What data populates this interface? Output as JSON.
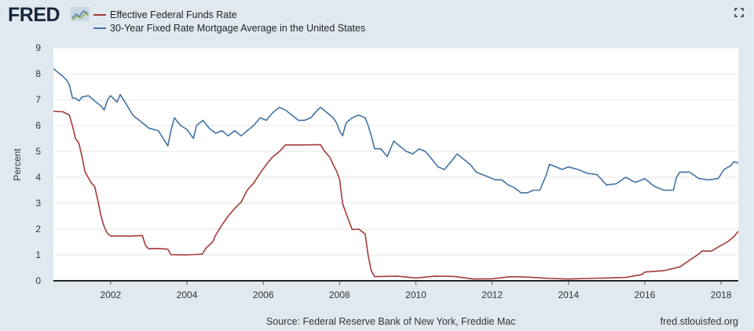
{
  "header": {
    "logo_text": "FRED",
    "logo_icon": "line-chart-icon",
    "fullscreen_icon": "fullscreen-icon"
  },
  "footer": {
    "source": "Source: Federal Reserve Bank of New York, Freddie Mac",
    "site": "fred.stlouisfed.org"
  },
  "chart_data": {
    "type": "line",
    "title": "",
    "xlabel": "",
    "ylabel": "Percent",
    "xlim": [
      2000.5,
      2018.45
    ],
    "ylim": [
      0,
      9
    ],
    "x_ticks": [
      "2002",
      "2004",
      "2006",
      "2008",
      "2010",
      "2012",
      "2014",
      "2016",
      "2018"
    ],
    "y_ticks": [
      "0",
      "1",
      "2",
      "3",
      "4",
      "5",
      "6",
      "7",
      "8",
      "9"
    ],
    "grid": true,
    "legend": "top-left",
    "series": [
      {
        "name": "Effective Federal Funds Rate",
        "color": "#a43a37",
        "points": [
          [
            2000.5,
            6.55
          ],
          [
            2000.75,
            6.53
          ],
          [
            2000.92,
            6.4
          ],
          [
            2001.0,
            5.98
          ],
          [
            2001.08,
            5.49
          ],
          [
            2001.17,
            5.31
          ],
          [
            2001.25,
            4.8
          ],
          [
            2001.33,
            4.21
          ],
          [
            2001.42,
            3.97
          ],
          [
            2001.5,
            3.77
          ],
          [
            2001.58,
            3.65
          ],
          [
            2001.67,
            3.07
          ],
          [
            2001.75,
            2.49
          ],
          [
            2001.83,
            2.09
          ],
          [
            2001.92,
            1.82
          ],
          [
            2002.0,
            1.73
          ],
          [
            2002.5,
            1.73
          ],
          [
            2002.83,
            1.75
          ],
          [
            2002.92,
            1.34
          ],
          [
            2003.0,
            1.24
          ],
          [
            2003.25,
            1.25
          ],
          [
            2003.5,
            1.22
          ],
          [
            2003.58,
            1.01
          ],
          [
            2004.0,
            1.0
          ],
          [
            2004.4,
            1.03
          ],
          [
            2004.5,
            1.26
          ],
          [
            2004.67,
            1.5
          ],
          [
            2004.75,
            1.76
          ],
          [
            2004.92,
            2.16
          ],
          [
            2005.08,
            2.5
          ],
          [
            2005.25,
            2.79
          ],
          [
            2005.42,
            3.04
          ],
          [
            2005.58,
            3.5
          ],
          [
            2005.75,
            3.78
          ],
          [
            2005.92,
            4.16
          ],
          [
            2006.08,
            4.49
          ],
          [
            2006.25,
            4.79
          ],
          [
            2006.42,
            4.99
          ],
          [
            2006.58,
            5.25
          ],
          [
            2007.0,
            5.25
          ],
          [
            2007.5,
            5.26
          ],
          [
            2007.6,
            5.02
          ],
          [
            2007.75,
            4.76
          ],
          [
            2007.83,
            4.49
          ],
          [
            2007.92,
            4.24
          ],
          [
            2008.0,
            3.94
          ],
          [
            2008.08,
            2.98
          ],
          [
            2008.17,
            2.61
          ],
          [
            2008.33,
            1.98
          ],
          [
            2008.5,
            2.0
          ],
          [
            2008.67,
            1.81
          ],
          [
            2008.75,
            0.97
          ],
          [
            2008.83,
            0.39
          ],
          [
            2008.92,
            0.16
          ],
          [
            2009.5,
            0.18
          ],
          [
            2010.0,
            0.11
          ],
          [
            2010.5,
            0.18
          ],
          [
            2011.0,
            0.17
          ],
          [
            2011.5,
            0.07
          ],
          [
            2012.0,
            0.08
          ],
          [
            2012.5,
            0.16
          ],
          [
            2013.0,
            0.14
          ],
          [
            2013.5,
            0.09
          ],
          [
            2014.0,
            0.07
          ],
          [
            2014.5,
            0.09
          ],
          [
            2015.0,
            0.11
          ],
          [
            2015.5,
            0.13
          ],
          [
            2015.92,
            0.24
          ],
          [
            2016.0,
            0.34
          ],
          [
            2016.5,
            0.39
          ],
          [
            2016.92,
            0.54
          ],
          [
            2017.17,
            0.79
          ],
          [
            2017.42,
            1.04
          ],
          [
            2017.5,
            1.15
          ],
          [
            2017.75,
            1.15
          ],
          [
            2017.92,
            1.3
          ],
          [
            2018.17,
            1.51
          ],
          [
            2018.33,
            1.7
          ],
          [
            2018.45,
            1.91
          ]
        ]
      },
      {
        "name": "30-Year Fixed Rate Mortgage Average in the United States",
        "color": "#4472a4",
        "points": [
          [
            2000.5,
            8.2
          ],
          [
            2000.62,
            8.05
          ],
          [
            2000.75,
            7.9
          ],
          [
            2000.85,
            7.75
          ],
          [
            2000.92,
            7.55
          ],
          [
            2001.0,
            7.06
          ],
          [
            2001.08,
            7.05
          ],
          [
            2001.17,
            6.95
          ],
          [
            2001.25,
            7.1
          ],
          [
            2001.42,
            7.15
          ],
          [
            2001.58,
            6.95
          ],
          [
            2001.75,
            6.75
          ],
          [
            2001.83,
            6.6
          ],
          [
            2001.92,
            7.0
          ],
          [
            2002.0,
            7.15
          ],
          [
            2002.17,
            6.9
          ],
          [
            2002.25,
            7.2
          ],
          [
            2002.42,
            6.8
          ],
          [
            2002.58,
            6.4
          ],
          [
            2002.75,
            6.2
          ],
          [
            2002.92,
            6.0
          ],
          [
            2003.0,
            5.9
          ],
          [
            2003.25,
            5.8
          ],
          [
            2003.42,
            5.4
          ],
          [
            2003.5,
            5.21
          ],
          [
            2003.58,
            5.8
          ],
          [
            2003.67,
            6.3
          ],
          [
            2003.83,
            6.0
          ],
          [
            2004.0,
            5.85
          ],
          [
            2004.17,
            5.5
          ],
          [
            2004.25,
            6.0
          ],
          [
            2004.42,
            6.2
          ],
          [
            2004.58,
            5.9
          ],
          [
            2004.75,
            5.7
          ],
          [
            2004.92,
            5.8
          ],
          [
            2005.08,
            5.6
          ],
          [
            2005.25,
            5.8
          ],
          [
            2005.42,
            5.6
          ],
          [
            2005.58,
            5.8
          ],
          [
            2005.75,
            6.0
          ],
          [
            2005.92,
            6.3
          ],
          [
            2006.08,
            6.2
          ],
          [
            2006.25,
            6.5
          ],
          [
            2006.42,
            6.7
          ],
          [
            2006.58,
            6.6
          ],
          [
            2006.75,
            6.4
          ],
          [
            2006.92,
            6.2
          ],
          [
            2007.08,
            6.2
          ],
          [
            2007.25,
            6.3
          ],
          [
            2007.42,
            6.6
          ],
          [
            2007.5,
            6.7
          ],
          [
            2007.67,
            6.5
          ],
          [
            2007.83,
            6.3
          ],
          [
            2007.92,
            6.1
          ],
          [
            2008.0,
            5.8
          ],
          [
            2008.08,
            5.6
          ],
          [
            2008.17,
            6.1
          ],
          [
            2008.33,
            6.3
          ],
          [
            2008.5,
            6.4
          ],
          [
            2008.67,
            6.3
          ],
          [
            2008.75,
            6.0
          ],
          [
            2008.83,
            5.6
          ],
          [
            2008.92,
            5.1
          ],
          [
            2009.08,
            5.1
          ],
          [
            2009.25,
            4.8
          ],
          [
            2009.42,
            5.4
          ],
          [
            2009.58,
            5.2
          ],
          [
            2009.75,
            5.0
          ],
          [
            2009.92,
            4.9
          ],
          [
            2010.08,
            5.1
          ],
          [
            2010.25,
            5.0
          ],
          [
            2010.42,
            4.7
          ],
          [
            2010.58,
            4.4
          ],
          [
            2010.75,
            4.3
          ],
          [
            2010.92,
            4.6
          ],
          [
            2011.08,
            4.9
          ],
          [
            2011.25,
            4.7
          ],
          [
            2011.42,
            4.5
          ],
          [
            2011.58,
            4.2
          ],
          [
            2011.75,
            4.1
          ],
          [
            2011.92,
            4.0
          ],
          [
            2012.08,
            3.9
          ],
          [
            2012.25,
            3.9
          ],
          [
            2012.42,
            3.7
          ],
          [
            2012.58,
            3.6
          ],
          [
            2012.75,
            3.4
          ],
          [
            2012.92,
            3.4
          ],
          [
            2013.08,
            3.5
          ],
          [
            2013.25,
            3.5
          ],
          [
            2013.42,
            4.1
          ],
          [
            2013.5,
            4.5
          ],
          [
            2013.67,
            4.4
          ],
          [
            2013.83,
            4.3
          ],
          [
            2014.0,
            4.4
          ],
          [
            2014.25,
            4.3
          ],
          [
            2014.5,
            4.15
          ],
          [
            2014.75,
            4.1
          ],
          [
            2015.0,
            3.7
          ],
          [
            2015.25,
            3.75
          ],
          [
            2015.5,
            4.0
          ],
          [
            2015.75,
            3.8
          ],
          [
            2016.0,
            3.95
          ],
          [
            2016.25,
            3.65
          ],
          [
            2016.5,
            3.5
          ],
          [
            2016.75,
            3.5
          ],
          [
            2016.83,
            4.0
          ],
          [
            2016.92,
            4.2
          ],
          [
            2017.17,
            4.2
          ],
          [
            2017.42,
            3.95
          ],
          [
            2017.67,
            3.9
          ],
          [
            2017.92,
            3.95
          ],
          [
            2018.08,
            4.3
          ],
          [
            2018.25,
            4.45
          ],
          [
            2018.33,
            4.6
          ],
          [
            2018.45,
            4.55
          ]
        ]
      }
    ]
  }
}
